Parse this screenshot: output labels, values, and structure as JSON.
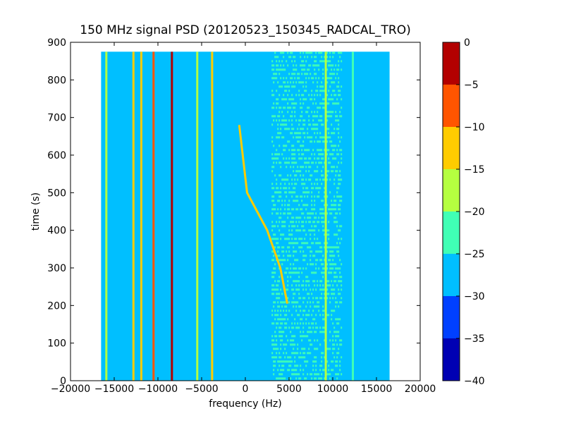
{
  "chart_data": {
    "type": "heatmap",
    "title": "150 MHz signal PSD (20120523_150345_RADCAL_TRO)",
    "xlabel": "frequency (Hz)",
    "ylabel": "time (s)",
    "xlim": [
      -20000,
      20000
    ],
    "ylim": [
      0,
      900
    ],
    "x_ticks": [
      -20000,
      -15000,
      -10000,
      -5000,
      0,
      5000,
      10000,
      15000,
      20000
    ],
    "y_ticks": [
      0,
      100,
      200,
      300,
      400,
      500,
      600,
      700,
      800,
      900
    ],
    "data_extent": {
      "x": [
        -16500,
        16500
      ],
      "y": [
        0,
        875
      ]
    },
    "background_level_dB": -28,
    "colorbar": {
      "levels": [
        -40,
        -35,
        -30,
        -25,
        -20,
        -15,
        -10,
        -5,
        0
      ],
      "colors": [
        "#0000b3",
        "#0040ff",
        "#00bfff",
        "#40ffb5",
        "#b5ff40",
        "#ffcc00",
        "#ff5500",
        "#b30000"
      ]
    },
    "features": [
      {
        "name": "noise band",
        "f_from": 3000,
        "f_to": 11000,
        "level_dB": -23
      },
      {
        "name": "strong carrier",
        "f": -8400,
        "level_dB": -2
      },
      {
        "name": "strong carrier",
        "f": -10500,
        "level_dB": -9
      },
      {
        "name": "carrier",
        "f": -11900,
        "level_dB": -13
      },
      {
        "name": "carrier",
        "f": -12800,
        "level_dB": -14
      },
      {
        "name": "carrier",
        "f": -15900,
        "level_dB": -17
      },
      {
        "name": "carrier",
        "f": -3800,
        "level_dB": -12
      },
      {
        "name": "carrier",
        "f": -5500,
        "level_dB": -19
      },
      {
        "name": "carrier",
        "f": 9200,
        "level_dB": -17
      },
      {
        "name": "carrier",
        "f": 12300,
        "level_dB": -21
      },
      {
        "name": "drifting signal",
        "t": [
          205,
          300,
          400,
          500,
          600,
          680
        ],
        "f": [
          4800,
          4000,
          2500,
          200,
          -300,
          -700
        ],
        "level_dB": -15
      }
    ]
  }
}
